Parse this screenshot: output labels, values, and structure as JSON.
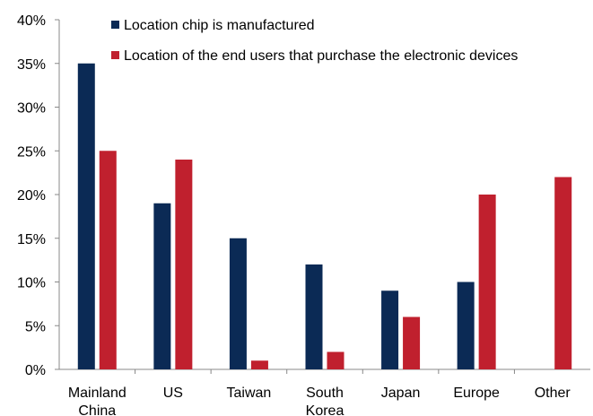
{
  "chart_data": {
    "type": "bar",
    "categories": [
      [
        "Mainland",
        "China"
      ],
      [
        "US"
      ],
      [
        "Taiwan"
      ],
      [
        "South",
        "Korea"
      ],
      [
        "Japan"
      ],
      [
        "Europe"
      ],
      [
        "Other"
      ]
    ],
    "series": [
      {
        "name": "Location chip is manufactured",
        "color": "#0b2a55",
        "values": [
          35,
          19,
          15,
          12,
          9,
          10,
          null
        ]
      },
      {
        "name": "Location of the end users that purchase the electronic devices",
        "color": "#c0202e",
        "values": [
          25,
          24,
          1,
          2,
          6,
          20,
          22
        ]
      }
    ],
    "ylim": [
      0,
      40
    ],
    "yticks": [
      0,
      5,
      10,
      15,
      20,
      25,
      30,
      35,
      40
    ],
    "ytick_format": "%",
    "legend_position": "top-right",
    "grid": false,
    "title": "",
    "xlabel": "",
    "ylabel": ""
  }
}
